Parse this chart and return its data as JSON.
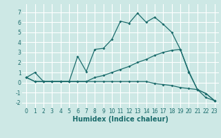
{
  "title": "",
  "xlabel": "Humidex (Indice chaleur)",
  "bg_color": "#cde8e5",
  "grid_color": "#ffffff",
  "line_color": "#1a6b6b",
  "xlim": [
    -0.5,
    23.5
  ],
  "ylim": [
    -2.5,
    7.8
  ],
  "xticks": [
    0,
    1,
    2,
    3,
    4,
    5,
    6,
    7,
    8,
    9,
    10,
    11,
    12,
    13,
    14,
    16,
    17,
    18,
    19,
    20,
    21,
    22,
    23
  ],
  "yticks": [
    -2,
    -1,
    0,
    1,
    2,
    3,
    4,
    5,
    6,
    7
  ],
  "line1_x": [
    0,
    1,
    2,
    3,
    4,
    5,
    6,
    7,
    8,
    9,
    10,
    11,
    12,
    13,
    14,
    16,
    17,
    18,
    19,
    20,
    21,
    22,
    23
  ],
  "line1_y": [
    0.5,
    1.0,
    0.1,
    0.1,
    0.1,
    0.1,
    2.6,
    1.1,
    3.3,
    3.4,
    4.3,
    6.1,
    5.9,
    6.9,
    6.0,
    6.5,
    5.8,
    5.0,
    3.3,
    1.1,
    -0.7,
    -1.1,
    -1.8
  ],
  "line2_x": [
    0,
    1,
    2,
    3,
    4,
    5,
    6,
    7,
    8,
    9,
    10,
    11,
    12,
    13,
    14,
    16,
    17,
    18,
    19,
    20,
    21,
    22,
    23
  ],
  "line2_y": [
    0.5,
    0.1,
    0.1,
    0.1,
    0.1,
    0.1,
    0.1,
    0.1,
    0.5,
    0.7,
    1.0,
    1.3,
    1.6,
    2.0,
    2.3,
    2.7,
    3.0,
    3.2,
    3.3,
    1.0,
    -0.7,
    -1.1,
    -1.8
  ],
  "line3_x": [
    0,
    1,
    2,
    3,
    4,
    5,
    6,
    7,
    8,
    9,
    10,
    11,
    12,
    13,
    14,
    16,
    17,
    18,
    19,
    20,
    21,
    22,
    23
  ],
  "line3_y": [
    0.5,
    0.1,
    0.1,
    0.1,
    0.1,
    0.1,
    0.1,
    0.1,
    0.1,
    0.1,
    0.1,
    0.1,
    0.1,
    0.1,
    0.1,
    -0.1,
    -0.2,
    -0.3,
    -0.5,
    -0.6,
    -0.7,
    -1.5,
    -1.8
  ],
  "figsize": [
    3.2,
    2.0
  ],
  "dpi": 100,
  "tick_fontsize": 5.5,
  "xlabel_fontsize": 7
}
